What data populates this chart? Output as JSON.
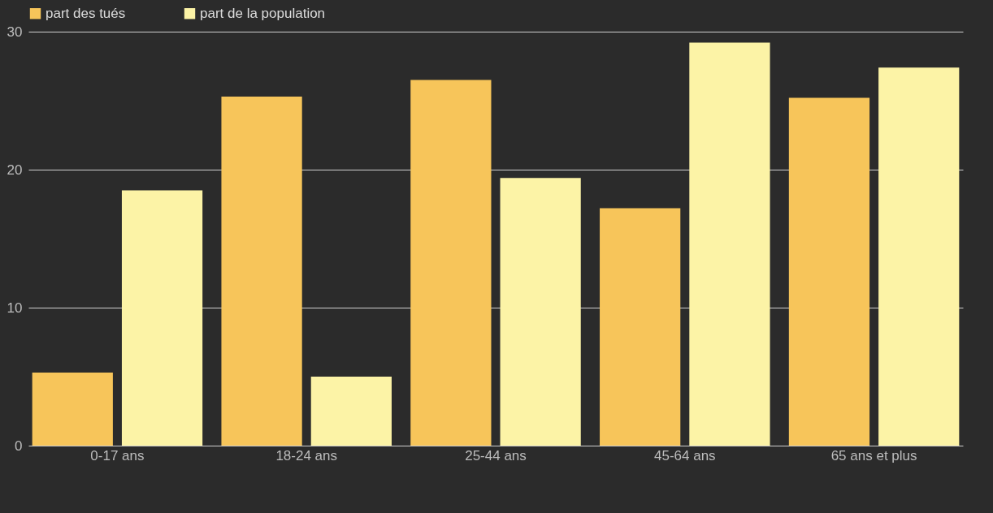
{
  "chart_data": {
    "type": "bar",
    "categories": [
      "0-17 ans",
      "18-24 ans",
      "25-44 ans",
      "45-64 ans",
      "65 ans et plus"
    ],
    "series": [
      {
        "name": "part des tués",
        "color": "#f7c55a",
        "values": [
          5.3,
          25.3,
          26.5,
          17.2,
          25.2
        ]
      },
      {
        "name": "part de la population",
        "color": "#fcf3a6",
        "values": [
          18.5,
          5.0,
          19.4,
          29.2,
          27.4
        ]
      }
    ],
    "ylim": [
      0,
      30
    ],
    "yticks": [
      0,
      10,
      20,
      30
    ],
    "grid": "y",
    "legend": "top"
  }
}
